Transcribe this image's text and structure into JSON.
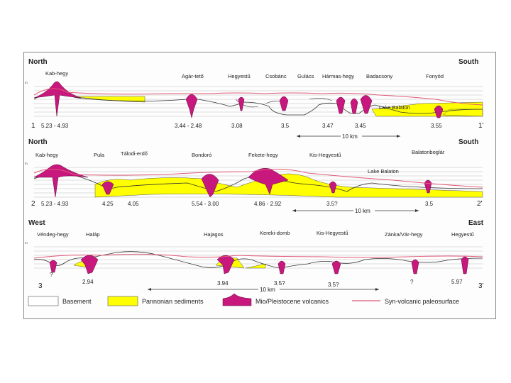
{
  "colors": {
    "basement": "#ffffff",
    "pannonian": "#ffff00",
    "volcanics": "#c8187e",
    "paleosurface": "#e05a78",
    "grid": "#bdbdbd",
    "outline": "#333333"
  },
  "sections": [
    {
      "left_dir": "North",
      "right_dir": "South",
      "left_num": "1",
      "right_num": "1'",
      "lake": "Lake Balaton",
      "scale": "10 km",
      "places": [
        "Kab-hegy",
        "Agár-tető",
        "Hegyestű",
        "Csobánc",
        "Gulács",
        "Hármas-hegy",
        "Badacsony",
        "Fonyód"
      ],
      "ages": [
        "5.23 - 4.93",
        "3.44 - 2.48",
        "3.08",
        "3.5",
        "3.47",
        "3.45",
        "3.55"
      ]
    },
    {
      "left_dir": "North",
      "right_dir": "South",
      "left_num": "2",
      "right_num": "2'",
      "lake": "Lake Balaton",
      "scale": "10 km",
      "places": [
        "Kab-hegy",
        "Pula",
        "Tálodi-erdő",
        "Bondoró",
        "Fekete-hegy",
        "Kis-Hegyestű",
        "Balatonboglár"
      ],
      "ages": [
        "5.23 - 4.93",
        "4.25",
        "4.05",
        "5.54 - 3.00",
        "4.86 - 2.92",
        "3.5?",
        "3.5"
      ]
    },
    {
      "left_dir": "West",
      "right_dir": "East",
      "left_num": "3",
      "right_num": "3'",
      "scale": "10 km",
      "places": [
        "Véndeg-hegy",
        "Haláp",
        "Hajagos",
        "Kereki-domb",
        "Kis-Hegyestű",
        "Zánka/Vár-hegy",
        "Hegyestű"
      ],
      "ages": [
        "?",
        "2.94",
        "3.94",
        "3.5?",
        "3.5?",
        "?",
        "5.97"
      ]
    }
  ],
  "legend": [
    {
      "label": "Basement",
      "key": "basement"
    },
    {
      "label": "Pannonian sediments",
      "key": "pannonian"
    },
    {
      "label": "Mio/Pleistocene volcanics",
      "key": "volcanics"
    },
    {
      "label": "Syn-volcanic paleosurface",
      "key": "paleosurface"
    }
  ]
}
